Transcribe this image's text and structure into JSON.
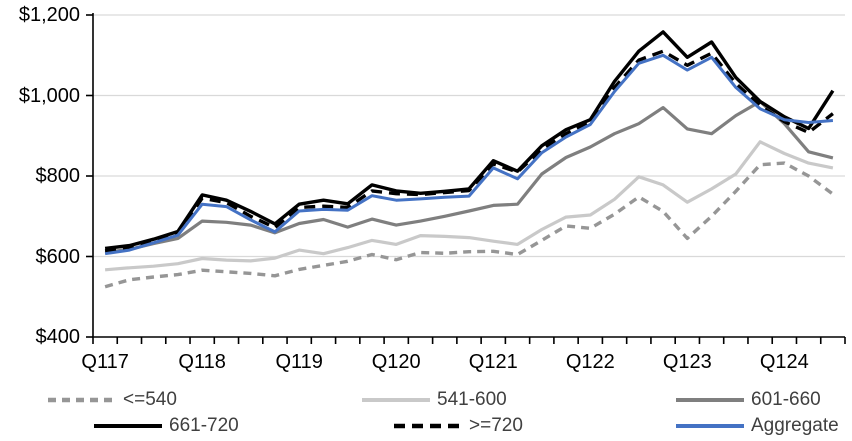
{
  "chart_data": {
    "type": "line",
    "title": "",
    "ylabel": "",
    "xlabel": "",
    "ylim": [
      400,
      1200
    ],
    "ytick_values": [
      400,
      600,
      800,
      1000,
      1200
    ],
    "ytick_labels": [
      "$400",
      "$600",
      "$800",
      "$1,000",
      "$1,200"
    ],
    "x_tick_labels": [
      "Q117",
      "Q118",
      "Q119",
      "Q120",
      "Q121",
      "Q122",
      "Q123",
      "Q124"
    ],
    "x_label_every": 4,
    "grid": "horizontal",
    "gridline_color": "#d9d9d9",
    "axis_color": "#000000",
    "legend_position": "bottom",
    "categories": [
      "Q117",
      "Q217",
      "Q317",
      "Q417",
      "Q118",
      "Q218",
      "Q318",
      "Q418",
      "Q119",
      "Q219",
      "Q319",
      "Q419",
      "Q120",
      "Q220",
      "Q320",
      "Q420",
      "Q121",
      "Q221",
      "Q321",
      "Q421",
      "Q122",
      "Q222",
      "Q322",
      "Q422",
      "Q123",
      "Q223",
      "Q323",
      "Q423",
      "Q124",
      "Q224",
      "Q324"
    ],
    "series": [
      {
        "name": "<=540",
        "color": "#969696",
        "dash": "8 6",
        "width": 3.4,
        "values": [
          525,
          542,
          549,
          555,
          566,
          562,
          558,
          552,
          568,
          578,
          588,
          605,
          592,
          610,
          608,
          612,
          613,
          605,
          640,
          676,
          670,
          705,
          748,
          712,
          645,
          700,
          762,
          828,
          832,
          800,
          755
        ]
      },
      {
        "name": "541-600",
        "color": "#c9c9c9",
        "dash": null,
        "width": 3.2,
        "values": [
          567,
          572,
          576,
          582,
          595,
          591,
          589,
          596,
          616,
          607,
          622,
          640,
          630,
          652,
          650,
          647,
          638,
          630,
          667,
          698,
          703,
          742,
          798,
          778,
          735,
          768,
          805,
          885,
          856,
          832,
          820
        ]
      },
      {
        "name": "601-660",
        "color": "#7f7f7f",
        "dash": null,
        "width": 3.2,
        "values": [
          610,
          618,
          632,
          645,
          688,
          685,
          678,
          659,
          682,
          692,
          673,
          693,
          678,
          688,
          700,
          713,
          727,
          730,
          805,
          846,
          872,
          905,
          930,
          970,
          917,
          905,
          950,
          985,
          930,
          860,
          845
        ]
      },
      {
        "name": "661-720",
        "color": "#000000",
        "dash": null,
        "width": 3.4,
        "values": [
          620,
          627,
          643,
          662,
          753,
          740,
          712,
          681,
          730,
          740,
          731,
          778,
          763,
          757,
          762,
          768,
          838,
          812,
          875,
          915,
          940,
          1035,
          1110,
          1158,
          1095,
          1133,
          1045,
          985,
          947,
          918,
          1012
        ]
      },
      {
        "name": ">=720",
        "color": "#000000",
        "dash": "11 7",
        "width": 3.4,
        "values": [
          614,
          622,
          638,
          656,
          745,
          734,
          700,
          672,
          722,
          725,
          722,
          763,
          756,
          754,
          759,
          764,
          830,
          810,
          866,
          905,
          935,
          1020,
          1088,
          1110,
          1075,
          1105,
          1030,
          975,
          935,
          908,
          955
        ]
      },
      {
        "name": "Aggregate",
        "color": "#4472c4",
        "dash": null,
        "width": 3,
        "values": [
          607,
          616,
          634,
          653,
          730,
          724,
          691,
          661,
          713,
          717,
          715,
          751,
          740,
          743,
          747,
          750,
          820,
          793,
          858,
          897,
          928,
          1010,
          1080,
          1100,
          1063,
          1095,
          1020,
          967,
          940,
          933,
          938
        ]
      }
    ]
  }
}
